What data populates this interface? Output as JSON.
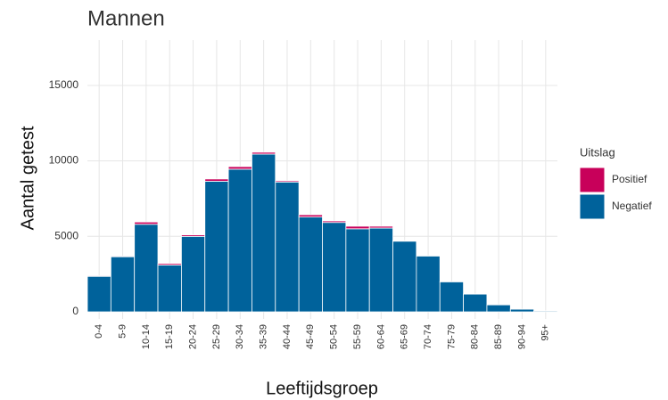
{
  "chart_data": {
    "type": "stacked_bar",
    "title": "Mannen",
    "x_label": "Leeftijdsgroep",
    "y_label": "Aantal getest",
    "categories": [
      "0-4",
      "5-9",
      "10-14",
      "15-19",
      "20-24",
      "25-29",
      "30-34",
      "35-39",
      "40-44",
      "45-49",
      "50-54",
      "55-59",
      "60-64",
      "65-69",
      "70-74",
      "75-79",
      "80-84",
      "85-89",
      "90-94",
      "95+"
    ],
    "series": [
      {
        "name": "Positief",
        "color": "#c8005a",
        "values": [
          50,
          50,
          150,
          100,
          100,
          150,
          170,
          120,
          80,
          150,
          100,
          170,
          120,
          40,
          20,
          10,
          5,
          5,
          2,
          1
        ]
      },
      {
        "name": "Negatief",
        "color": "#00629b",
        "values": [
          2350,
          3650,
          5800,
          3100,
          5000,
          8650,
          9450,
          10450,
          8600,
          6280,
          5920,
          5500,
          5550,
          4680,
          3700,
          1990,
          1175,
          465,
          178,
          59
        ]
      }
    ],
    "legend_title": "Uitslag",
    "legend": "right",
    "ylim": [
      -470,
      18000
    ],
    "yticks": [
      0,
      5000,
      10000,
      15000
    ],
    "grid": true
  }
}
